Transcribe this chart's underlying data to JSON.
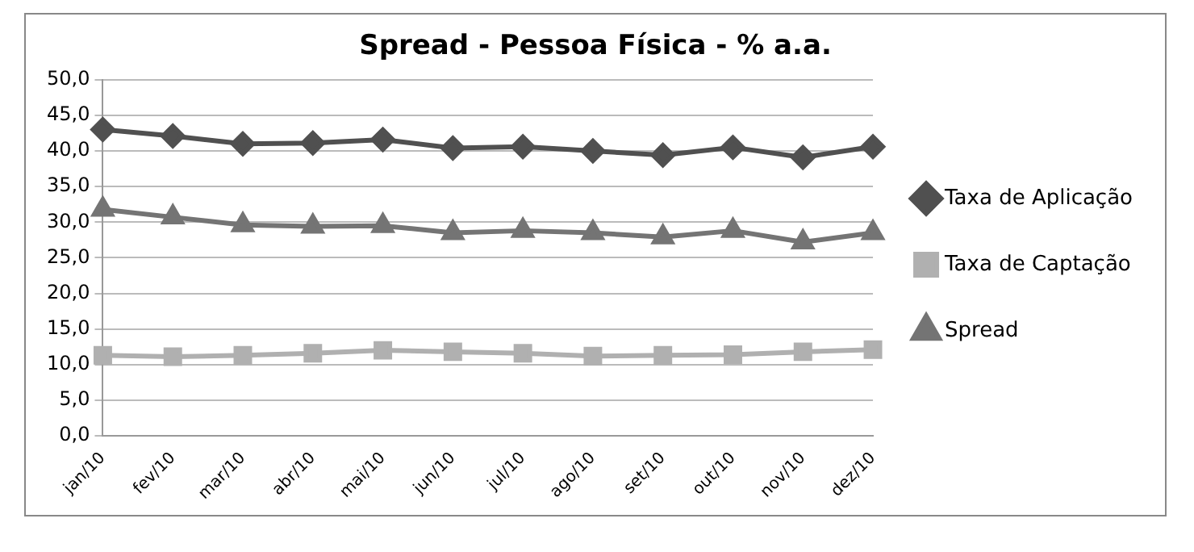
{
  "chart_data": {
    "type": "line",
    "title": "Spread - Pessoa Física - % a.a.",
    "categories": [
      "jan/10",
      "fev/10",
      "mar/10",
      "abr/10",
      "mai/10",
      "jun/10",
      "jul/10",
      "ago/10",
      "set/10",
      "out/10",
      "nov/10",
      "dez/10"
    ],
    "series": [
      {
        "name": "Taxa de Aplicação",
        "color": "#505050",
        "marker": "diamond",
        "values": [
          43.0,
          42.1,
          41.0,
          41.1,
          41.6,
          40.4,
          40.6,
          40.0,
          39.4,
          40.5,
          39.1,
          40.6
        ]
      },
      {
        "name": "Taxa de Captação",
        "color": "#b0b0b0",
        "marker": "square",
        "values": [
          11.3,
          11.1,
          11.3,
          11.6,
          12.0,
          11.8,
          11.6,
          11.2,
          11.3,
          11.4,
          11.8,
          12.1
        ]
      },
      {
        "name": "Spread",
        "color": "#747474",
        "marker": "triangle",
        "values": [
          31.8,
          30.7,
          29.6,
          29.4,
          29.5,
          28.5,
          28.8,
          28.5,
          27.9,
          28.8,
          27.2,
          28.5
        ]
      }
    ],
    "ylim": [
      0,
      50
    ],
    "yticks": [
      {
        "value": 0,
        "label": "0,0"
      },
      {
        "value": 5,
        "label": "5,0"
      },
      {
        "value": 10,
        "label": "10,0"
      },
      {
        "value": 15,
        "label": "15,0"
      },
      {
        "value": 20,
        "label": "20,0"
      },
      {
        "value": 25,
        "label": "25,0"
      },
      {
        "value": 30,
        "label": "30,0"
      },
      {
        "value": 35,
        "label": "35,0"
      },
      {
        "value": 40,
        "label": "40,0"
      },
      {
        "value": 45,
        "label": "45,0"
      },
      {
        "value": 50,
        "label": "50,0"
      }
    ],
    "grid": "y",
    "legend": "right",
    "line_style": "solid"
  }
}
